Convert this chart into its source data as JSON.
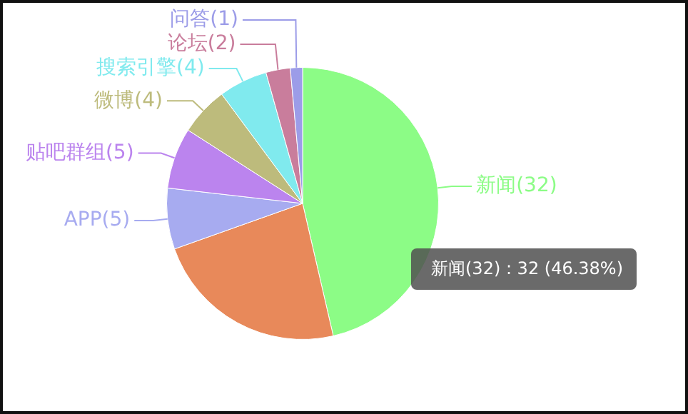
{
  "chart_data": {
    "type": "pie",
    "categories": [
      "新闻(32)",
      null,
      "APP(5)",
      "贴吧群组(5)",
      "微博(4)",
      "搜索引擎(4)",
      "论坛(2)",
      "问答(1)"
    ],
    "values": [
      32,
      16,
      5,
      5,
      4,
      4,
      2,
      1
    ],
    "colors": [
      "#8cfc86",
      "#e8895a",
      "#a7abf0",
      "#bb84ee",
      "#bdbb7c",
      "#80eaee",
      "#c97d9c",
      "#9c9ce8"
    ],
    "annotations": [
      "新闻(32) : 32 (46.38%)"
    ]
  }
}
